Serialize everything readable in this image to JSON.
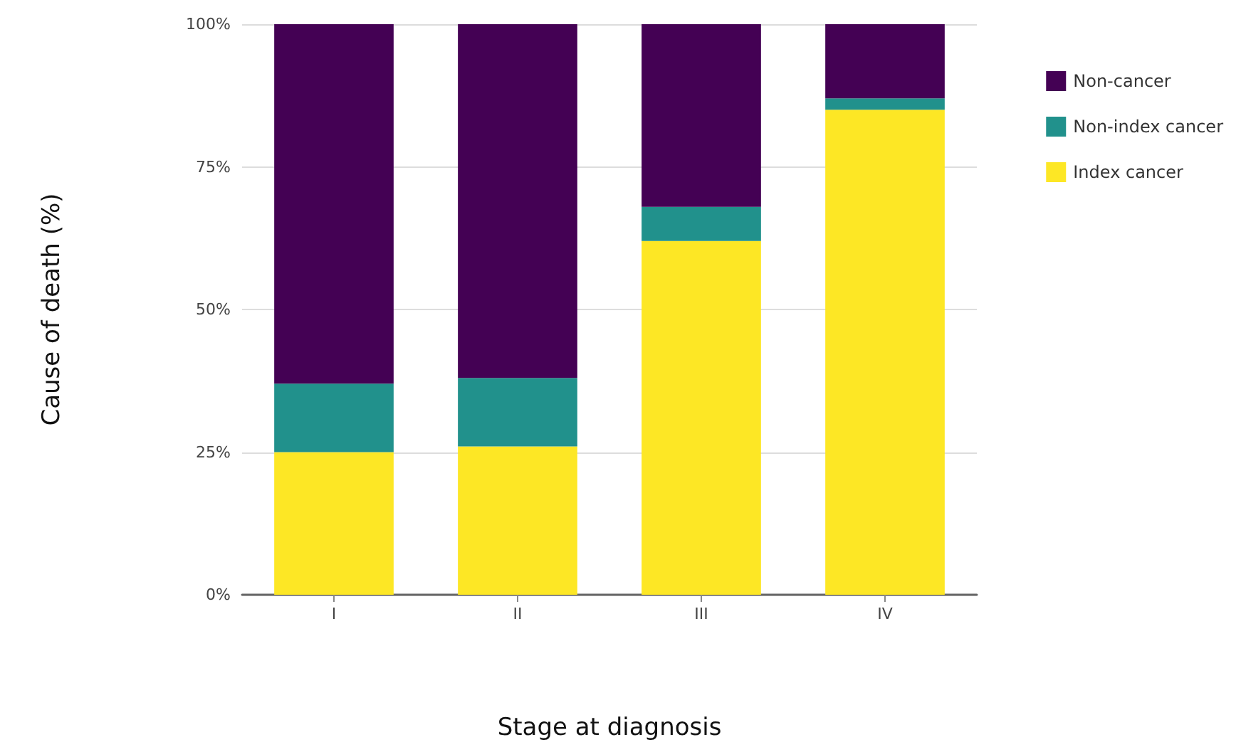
{
  "chart_data": {
    "type": "bar",
    "stacked": true,
    "xlabel": "Stage at diagnosis",
    "ylabel": "Cause of death (%)",
    "categories": [
      "I",
      "II",
      "III",
      "IV"
    ],
    "series": [
      {
        "name": "Index cancer",
        "color": "#fde725",
        "values": [
          25,
          26,
          62,
          85
        ]
      },
      {
        "name": "Non-index cancer",
        "color": "#21918c",
        "values": [
          12,
          12,
          6,
          2
        ]
      },
      {
        "name": "Non-cancer",
        "color": "#440154",
        "values": [
          63,
          62,
          32,
          13
        ]
      }
    ],
    "ylim": [
      0,
      100
    ],
    "yticks": [
      {
        "value": 0,
        "label": "0%"
      },
      {
        "value": 25,
        "label": "25%"
      },
      {
        "value": 50,
        "label": "50%"
      },
      {
        "value": 75,
        "label": "75%"
      },
      {
        "value": 100,
        "label": "100%"
      }
    ],
    "grid": "y",
    "legend": "right"
  }
}
